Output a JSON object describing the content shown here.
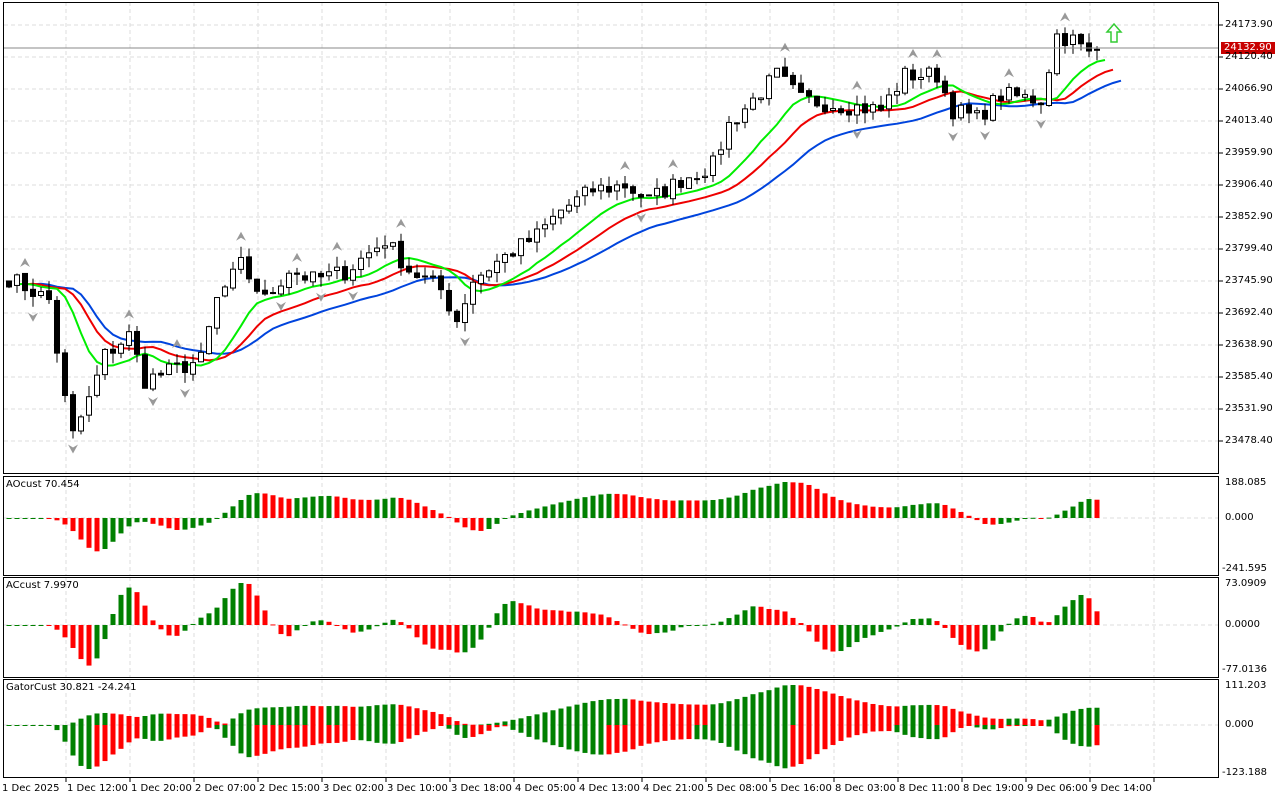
{
  "symbol_panel": {
    "current_price": "24132.90",
    "current_price_value": 24132.9,
    "price_axis": [
      "24173.90",
      "24120.40",
      "24066.90",
      "24013.40",
      "23959.90",
      "23906.40",
      "23852.90",
      "23799.40",
      "23745.90",
      "23692.40",
      "23638.90",
      "23585.40",
      "23531.90",
      "23478.40"
    ],
    "colors": {
      "lips": "#00ee00",
      "teeth": "#ee0000",
      "jaw": "#0044dd",
      "bull": "#008000",
      "bear": "#ff0000",
      "price_label": "#c80000",
      "signal_arrow": "#33cc33"
    },
    "signal_icon": "up-arrow-outline-icon"
  },
  "time_axis": [
    "1 Dec 2025",
    "1 Dec 12:00",
    "1 Dec 20:00",
    "2 Dec 07:00",
    "2 Dec 15:00",
    "3 Dec 02:00",
    "3 Dec 10:00",
    "3 Dec 18:00",
    "4 Dec 05:00",
    "4 Dec 13:00",
    "4 Dec 21:00",
    "5 Dec 08:00",
    "5 Dec 16:00",
    "8 Dec 03:00",
    "8 Dec 11:00",
    "8 Dec 19:00",
    "9 Dec 06:00",
    "9 Dec 14:00"
  ],
  "indicators": {
    "ao": {
      "label": "AOcust 70.454",
      "max": "188.085",
      "zero": "0.000",
      "min": "-241.595"
    },
    "ac": {
      "label": "ACcust 7.9970",
      "max": "73.0909",
      "zero": "0.0000",
      "min": "-77.0136"
    },
    "gator": {
      "label": "GatorCust 30.821 -24.241",
      "max": "111.203",
      "zero": "0.000",
      "min": "-123.188"
    }
  },
  "chart_data": {
    "type": "candlestick",
    "candle_count": 137,
    "close_anchors": [
      [
        0,
        23751
      ],
      [
        5,
        23714
      ],
      [
        7,
        23547
      ],
      [
        8,
        23488
      ],
      [
        10,
        23547
      ],
      [
        12,
        23622
      ],
      [
        15,
        23655
      ],
      [
        17,
        23580
      ],
      [
        24,
        23614
      ],
      [
        26,
        23714
      ],
      [
        29,
        23773
      ],
      [
        32,
        23714
      ],
      [
        35,
        23765
      ],
      [
        38,
        23748
      ],
      [
        42,
        23761
      ],
      [
        47,
        23814
      ],
      [
        50,
        23765
      ],
      [
        54,
        23731
      ],
      [
        56,
        23681
      ],
      [
        58,
        23748
      ],
      [
        61,
        23778
      ],
      [
        66,
        23822
      ],
      [
        69,
        23864
      ],
      [
        73,
        23898
      ],
      [
        77,
        23906
      ],
      [
        80,
        23881
      ],
      [
        84,
        23915
      ],
      [
        88,
        23940
      ],
      [
        90,
        24007
      ],
      [
        93,
        24049
      ],
      [
        96,
        24090
      ],
      [
        99,
        24049
      ],
      [
        104,
        24040
      ],
      [
        109,
        24032
      ],
      [
        112,
        24090
      ],
      [
        116,
        24090
      ],
      [
        118,
        24032
      ],
      [
        121,
        24018
      ],
      [
        124,
        24057
      ],
      [
        129,
        24049
      ],
      [
        131,
        24157
      ],
      [
        133,
        24149
      ],
      [
        135,
        24124
      ],
      [
        136,
        24133
      ]
    ]
  }
}
